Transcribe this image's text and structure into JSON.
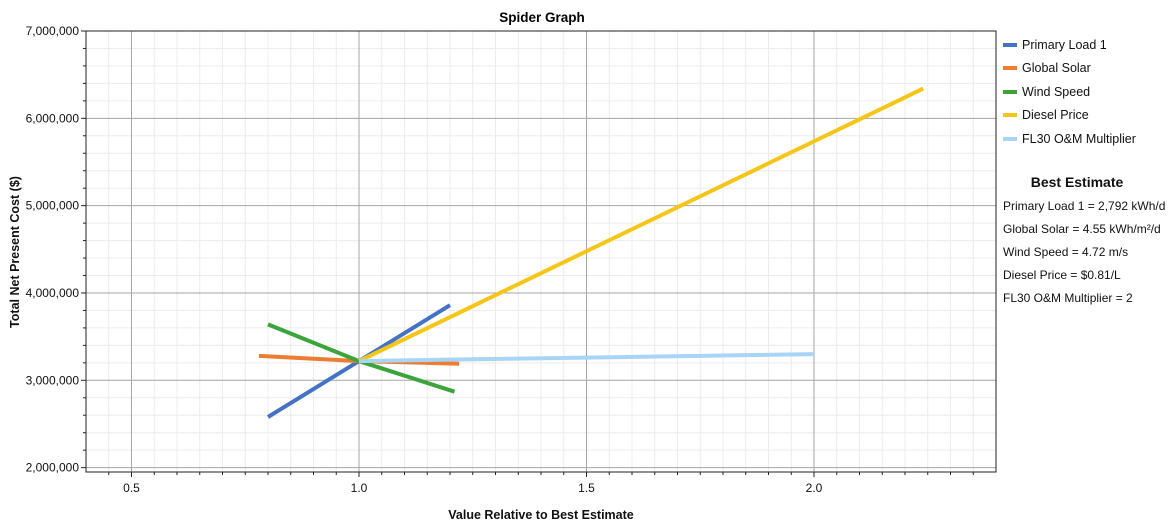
{
  "chart_data": {
    "type": "line",
    "title": "Spider Graph",
    "xlabel": "Value Relative to Best Estimate",
    "ylabel": "Total Net Present Cost ($)",
    "xlim": [
      0.4,
      2.4
    ],
    "ylim": [
      1950000,
      7000000
    ],
    "x_ticks": [
      0.5,
      1.0,
      1.5,
      2.0
    ],
    "x_tick_labels": [
      "0.5",
      "1.0",
      "1.5",
      "2.0"
    ],
    "y_ticks": [
      2000000,
      3000000,
      4000000,
      5000000,
      6000000,
      7000000
    ],
    "y_tick_labels": [
      "2,000,000",
      "3,000,000",
      "4,000,000",
      "5,000,000",
      "6,000,000",
      "7,000,000"
    ],
    "grid": true,
    "legend_position": "right",
    "series": [
      {
        "name": "Primary Load 1",
        "color": "#4472c4",
        "x": [
          0.8,
          1.0,
          1.2
        ],
        "values": [
          2580000,
          3220000,
          3860000
        ]
      },
      {
        "name": "Global Solar",
        "color": "#ed7d31",
        "x": [
          0.78,
          1.0,
          1.22
        ],
        "values": [
          3280000,
          3220000,
          3190000
        ]
      },
      {
        "name": "Wind Speed",
        "color": "#3ba53b",
        "x": [
          0.8,
          1.0,
          1.21
        ],
        "values": [
          3640000,
          3220000,
          2870000
        ]
      },
      {
        "name": "Diesel Price",
        "color": "#f5c518",
        "x": [
          1.0,
          2.24
        ],
        "values": [
          3220000,
          6340000
        ]
      },
      {
        "name": "FL30 O&M Multiplier",
        "color": "#a8d4f5",
        "x": [
          1.0,
          1.25,
          1.5,
          1.75,
          2.0
        ],
        "values": [
          3220000,
          3240000,
          3260000,
          3280000,
          3300000
        ]
      }
    ]
  },
  "best_estimate": {
    "title": "Best Estimate",
    "lines": [
      "Primary Load 1 = 2,792 kWh/d",
      "Global Solar = 4.55 kWh/m²/d",
      "Wind Speed = 4.72 m/s",
      "Diesel Price = $0.81/L",
      "FL30 O&M Multiplier = 2"
    ]
  }
}
